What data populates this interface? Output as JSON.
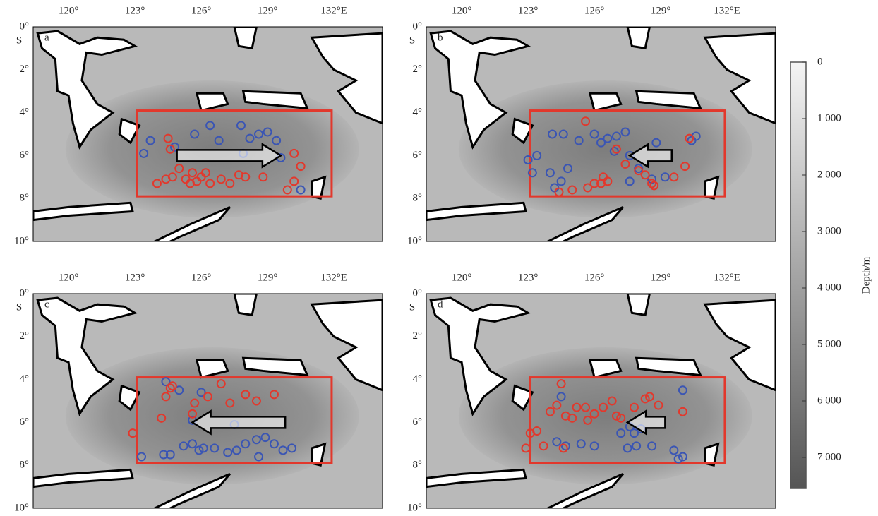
{
  "map": {
    "xlim": [
      118.4,
      134.2
    ],
    "ylim": [
      0,
      10
    ],
    "xticks": [
      {
        "value": 120,
        "label": "120°"
      },
      {
        "value": 123,
        "label": "123°"
      },
      {
        "value": 126,
        "label": "126°"
      },
      {
        "value": 129,
        "label": "129°"
      },
      {
        "value": 132,
        "label": "132°E"
      }
    ],
    "yticks": [
      {
        "value": 0,
        "label": "0°"
      },
      {
        "value": 2,
        "label": "2°"
      },
      {
        "value": 4,
        "label": "4°"
      },
      {
        "value": 6,
        "label": "6°"
      },
      {
        "value": 8,
        "label": "8°"
      },
      {
        "value": 10,
        "label": "10°"
      }
    ],
    "hemisphere": "S",
    "panels": [
      {
        "label": "a",
        "series": [
          {
            "color": "#3a55b4",
            "points": [
              [
                123.7,
                5.3
              ],
              [
                123.4,
                5.9
              ],
              [
                124.8,
                5.6
              ],
              [
                125.7,
                5.0
              ],
              [
                126.4,
                4.6
              ],
              [
                126.8,
                5.3
              ],
              [
                127.8,
                4.6
              ],
              [
                128.2,
                5.2
              ],
              [
                128.6,
                5.0
              ],
              [
                129.0,
                4.9
              ],
              [
                129.4,
                5.3
              ],
              [
                129.6,
                6.1
              ],
              [
                130.5,
                7.6
              ],
              [
                127.9,
                5.9
              ]
            ]
          },
          {
            "color": "#e2382c",
            "points": [
              [
                124.5,
                5.2
              ],
              [
                124.6,
                5.7
              ],
              [
                124.0,
                7.3
              ],
              [
                124.4,
                7.1
              ],
              [
                124.7,
                7.0
              ],
              [
                125.0,
                6.6
              ],
              [
                125.3,
                7.1
              ],
              [
                125.5,
                7.3
              ],
              [
                125.6,
                6.8
              ],
              [
                125.8,
                7.2
              ],
              [
                126.0,
                7.0
              ],
              [
                126.2,
                6.8
              ],
              [
                126.4,
                7.3
              ],
              [
                126.9,
                7.1
              ],
              [
                127.3,
                7.3
              ],
              [
                127.7,
                6.9
              ],
              [
                128.0,
                7.0
              ],
              [
                128.8,
                7.0
              ],
              [
                130.2,
                5.9
              ],
              [
                130.5,
                6.5
              ],
              [
                130.2,
                7.2
              ],
              [
                129.9,
                7.6
              ]
            ]
          }
        ]
      },
      {
        "label": "b",
        "series": [
          {
            "color": "#3a55b4",
            "points": [
              [
                123.0,
                6.2
              ],
              [
                123.4,
                6.0
              ],
              [
                123.2,
                6.8
              ],
              [
                124.1,
                5.0
              ],
              [
                124.6,
                5.0
              ],
              [
                124.0,
                6.8
              ],
              [
                124.8,
                6.6
              ],
              [
                124.5,
                7.2
              ],
              [
                124.2,
                7.5
              ],
              [
                125.3,
                5.3
              ],
              [
                126.0,
                5.0
              ],
              [
                126.3,
                5.4
              ],
              [
                126.6,
                5.2
              ],
              [
                127.0,
                5.1
              ],
              [
                127.4,
                4.9
              ],
              [
                126.9,
                5.8
              ],
              [
                127.6,
                6.0
              ],
              [
                128.0,
                6.6
              ],
              [
                128.8,
                5.4
              ],
              [
                129.2,
                7.0
              ],
              [
                130.6,
                5.1
              ],
              [
                130.4,
                5.3
              ],
              [
                128.6,
                7.1
              ],
              [
                127.6,
                7.2
              ]
            ]
          },
          {
            "color": "#e2382c",
            "points": [
              [
                125.6,
                4.4
              ],
              [
                124.4,
                7.7
              ],
              [
                125.0,
                7.6
              ],
              [
                125.7,
                7.5
              ],
              [
                126.0,
                7.3
              ],
              [
                126.4,
                7.0
              ],
              [
                126.6,
                7.2
              ],
              [
                126.3,
                7.3
              ],
              [
                127.0,
                5.7
              ],
              [
                127.4,
                6.4
              ],
              [
                128.0,
                6.7
              ],
              [
                128.3,
                6.9
              ],
              [
                128.6,
                7.3
              ],
              [
                128.7,
                7.4
              ],
              [
                129.6,
                7.0
              ],
              [
                130.1,
                6.5
              ],
              [
                130.3,
                5.2
              ]
            ]
          }
        ]
      },
      {
        "label": "c",
        "series": [
          {
            "color": "#3a55b4",
            "points": [
              [
                124.4,
                4.1
              ],
              [
                125.0,
                4.5
              ],
              [
                126.0,
                4.6
              ],
              [
                125.6,
                5.9
              ],
              [
                127.5,
                6.1
              ],
              [
                123.3,
                7.6
              ],
              [
                124.3,
                7.5
              ],
              [
                124.6,
                7.5
              ],
              [
                125.2,
                7.1
              ],
              [
                125.6,
                7.0
              ],
              [
                125.9,
                7.3
              ],
              [
                126.6,
                7.2
              ],
              [
                127.2,
                7.4
              ],
              [
                127.6,
                7.3
              ],
              [
                128.0,
                7.0
              ],
              [
                128.5,
                6.8
              ],
              [
                128.9,
                6.7
              ],
              [
                129.3,
                7.0
              ],
              [
                129.7,
                7.3
              ],
              [
                130.1,
                7.2
              ],
              [
                128.6,
                7.6
              ],
              [
                126.1,
                7.2
              ]
            ]
          },
          {
            "color": "#e2382c",
            "points": [
              [
                122.9,
                6.5
              ],
              [
                124.2,
                5.8
              ],
              [
                124.6,
                4.4
              ],
              [
                124.7,
                4.3
              ],
              [
                124.4,
                4.8
              ],
              [
                125.7,
                5.1
              ],
              [
                125.6,
                5.6
              ],
              [
                126.3,
                4.8
              ],
              [
                127.3,
                5.1
              ],
              [
                128.0,
                4.7
              ],
              [
                128.5,
                5.0
              ],
              [
                129.3,
                4.7
              ],
              [
                126.9,
                4.2
              ]
            ]
          }
        ]
      },
      {
        "label": "d",
        "series": [
          {
            "color": "#3a55b4",
            "points": [
              [
                124.5,
                4.8
              ],
              [
                124.3,
                6.9
              ],
              [
                124.7,
                7.1
              ],
              [
                125.4,
                7.0
              ],
              [
                126.0,
                7.1
              ],
              [
                127.2,
                6.5
              ],
              [
                127.6,
                6.2
              ],
              [
                127.8,
                6.5
              ],
              [
                127.9,
                7.1
              ],
              [
                127.5,
                7.2
              ],
              [
                128.1,
                6.3
              ],
              [
                128.6,
                7.1
              ],
              [
                129.6,
                7.3
              ],
              [
                129.8,
                7.7
              ],
              [
                130.0,
                7.6
              ],
              [
                130.0,
                4.5
              ]
            ]
          },
          {
            "color": "#e2382c",
            "points": [
              [
                122.9,
                7.2
              ],
              [
                123.1,
                6.5
              ],
              [
                123.4,
                6.4
              ],
              [
                123.7,
                7.1
              ],
              [
                124.0,
                5.5
              ],
              [
                124.3,
                5.2
              ],
              [
                124.5,
                4.2
              ],
              [
                124.7,
                5.7
              ],
              [
                125.0,
                5.8
              ],
              [
                125.2,
                5.3
              ],
              [
                125.6,
                5.3
              ],
              [
                125.7,
                5.9
              ],
              [
                126.0,
                5.6
              ],
              [
                126.4,
                5.3
              ],
              [
                126.8,
                5.0
              ],
              [
                127.0,
                5.7
              ],
              [
                127.2,
                5.8
              ],
              [
                127.8,
                5.3
              ],
              [
                128.3,
                4.9
              ],
              [
                128.5,
                4.8
              ],
              [
                128.9,
                5.2
              ],
              [
                130.0,
                5.5
              ],
              [
                124.6,
                7.2
              ]
            ]
          }
        ]
      }
    ]
  },
  "colorbar": {
    "title": "Depth/m",
    "lim": [
      0,
      7550
    ],
    "ticks": [
      0,
      {
        "value": 1000,
        "label": "1 000"
      },
      {
        "value": 2000,
        "label": "2 000"
      },
      {
        "value": 3000,
        "label": "3 000"
      },
      {
        "value": 4000,
        "label": "4 000"
      },
      {
        "value": 5000,
        "label": "5 000"
      },
      {
        "value": 6000,
        "label": "6 000"
      },
      {
        "value": 7000,
        "label": "7 000"
      }
    ]
  }
}
